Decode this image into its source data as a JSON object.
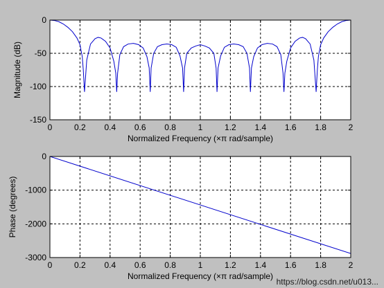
{
  "colors": {
    "figure_background": "#c0c0c0",
    "axes_background": "#ffffff",
    "line": "#0000cc",
    "grid": "#000000"
  },
  "watermark": "https://blog.csdn.net/u013...",
  "chart_data": [
    {
      "type": "line",
      "xlabel": "Normalized Frequency  (×π rad/sample)",
      "ylabel": "Magnitude (dB)",
      "xlim": [
        0,
        2
      ],
      "ylim": [
        -150,
        0
      ],
      "xticks": [
        "0",
        "0.2",
        "0.4",
        "0.6",
        "0.8",
        "1",
        "1.2",
        "1.4",
        "1.6",
        "1.8",
        "2"
      ],
      "yticks": [
        "0",
        "-50",
        "-100",
        "-150"
      ],
      "ytick_values": [
        0,
        -50,
        -100,
        -150
      ],
      "grid": true,
      "series": [
        {
          "x": [
            0,
            0.03,
            0.06,
            0.09,
            0.12,
            0.15,
            0.18,
            0.2,
            0.215,
            0.222,
            0.23,
            0.245,
            0.27,
            0.3,
            0.32,
            0.34,
            0.37,
            0.4,
            0.425,
            0.438,
            0.444,
            0.45,
            0.465,
            0.49,
            0.52,
            0.555,
            0.59,
            0.62,
            0.645,
            0.66,
            0.667,
            0.673,
            0.69,
            0.715,
            0.745,
            0.778,
            0.81,
            0.84,
            0.865,
            0.882,
            0.889,
            0.895,
            0.91,
            0.94,
            0.97,
            1.0,
            1.03,
            1.06,
            1.09,
            1.105,
            1.111,
            1.118,
            1.135,
            1.16,
            1.19,
            1.222,
            1.255,
            1.285,
            1.31,
            1.327,
            1.333,
            1.34,
            1.355,
            1.38,
            1.41,
            1.445,
            1.48,
            1.51,
            1.535,
            1.55,
            1.556,
            1.562,
            1.575,
            1.6,
            1.63,
            1.66,
            1.68,
            1.7,
            1.73,
            1.755,
            1.77,
            1.778,
            1.785,
            1.8,
            1.82,
            1.85,
            1.88,
            1.91,
            1.94,
            1.97,
            2.0
          ],
          "y": [
            0,
            -0.6,
            -2.5,
            -6,
            -11,
            -17.5,
            -27,
            -37,
            -55,
            -75,
            -108,
            -60,
            -36,
            -28,
            -26,
            -27,
            -32,
            -42,
            -62,
            -80,
            -108,
            -80,
            -52,
            -40,
            -36,
            -35,
            -37,
            -42,
            -55,
            -72,
            -108,
            -72,
            -50,
            -40,
            -37,
            -36,
            -37,
            -41,
            -54,
            -72,
            -108,
            -72,
            -50,
            -42,
            -39,
            -37,
            -39,
            -42,
            -50,
            -72,
            -108,
            -72,
            -54,
            -41,
            -37,
            -36,
            -37,
            -40,
            -50,
            -72,
            -108,
            -72,
            -55,
            -42,
            -37,
            -35,
            -36,
            -40,
            -52,
            -80,
            -108,
            -80,
            -62,
            -42,
            -32,
            -27,
            -26,
            -28,
            -36,
            -60,
            -108,
            -75,
            -55,
            -37,
            -27,
            -17.5,
            -11,
            -6,
            -2.5,
            -0.6,
            0
          ]
        }
      ]
    },
    {
      "type": "line",
      "xlabel": "Normalized Frequency  (×π rad/sample)",
      "ylabel": "Phase (degrees)",
      "xlim": [
        0,
        2
      ],
      "ylim": [
        -3000,
        0
      ],
      "xticks": [
        "0",
        "0.2",
        "0.4",
        "0.6",
        "0.8",
        "1",
        "1.2",
        "1.4",
        "1.6",
        "1.8",
        "2"
      ],
      "yticks": [
        "0",
        "-1000",
        "-2000",
        "-3000"
      ],
      "ytick_values": [
        0,
        -1000,
        -2000,
        -3000
      ],
      "grid": true,
      "series": [
        {
          "x": [
            0,
            2
          ],
          "y": [
            0,
            -2880
          ]
        }
      ]
    }
  ]
}
